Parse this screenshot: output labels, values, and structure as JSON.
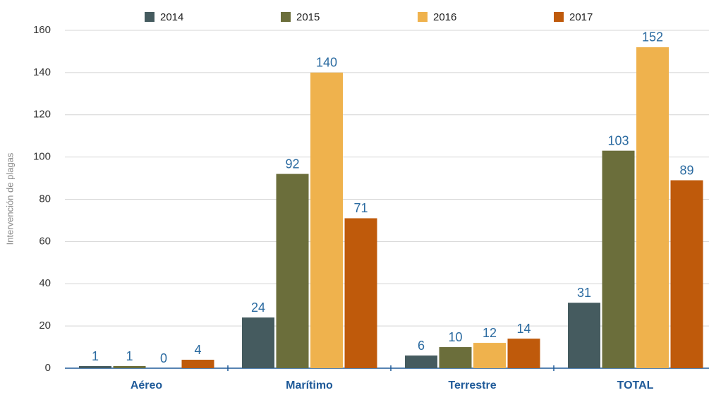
{
  "chart_data": {
    "type": "bar",
    "y_label": "Intervención de plagas",
    "categories": [
      "Aéreo",
      "Marítimo",
      "Terrestre",
      "TOTAL"
    ],
    "series": [
      {
        "name": "2014",
        "color": "#455b5f",
        "values": [
          1,
          24,
          6,
          31
        ]
      },
      {
        "name": "2015",
        "color": "#6b6e3b",
        "values": [
          1,
          92,
          10,
          103
        ]
      },
      {
        "name": "2016",
        "color": "#efb24d",
        "values": [
          0,
          140,
          12,
          152
        ]
      },
      {
        "name": "2017",
        "color": "#bf5a0b",
        "values": [
          4,
          71,
          14,
          89
        ]
      }
    ],
    "ylim": [
      0,
      160
    ],
    "yticks": [
      0,
      20,
      40,
      60,
      80,
      100,
      120,
      140,
      160
    ],
    "grid": true,
    "legend": "top"
  }
}
